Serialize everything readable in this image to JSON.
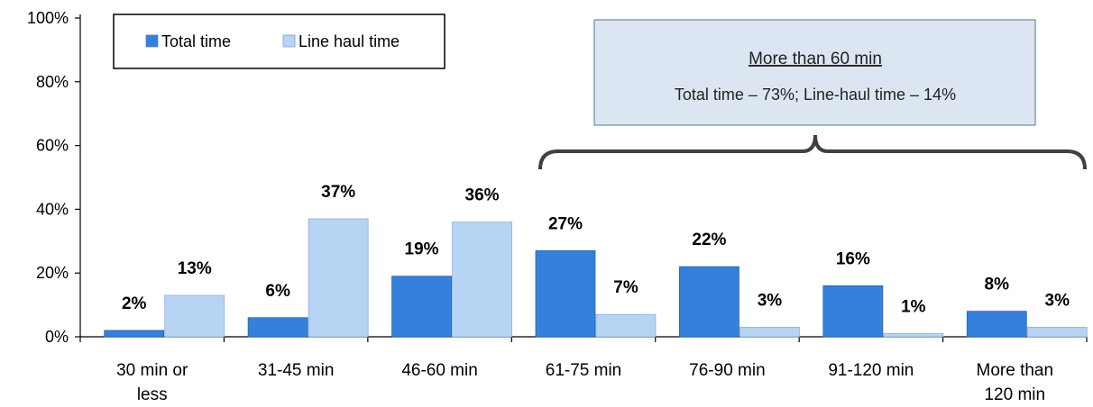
{
  "chart_data": {
    "type": "bar",
    "categories": [
      [
        "30 min or",
        "less"
      ],
      [
        "31-45 min"
      ],
      [
        "46-60 min"
      ],
      [
        "61-75 min"
      ],
      [
        "76-90 min"
      ],
      [
        "91-120 min"
      ],
      [
        "More than",
        "120 min"
      ]
    ],
    "series": [
      {
        "name": "Total time",
        "values": [
          2,
          6,
          19,
          27,
          22,
          16,
          8
        ],
        "color": "#3580DD"
      },
      {
        "name": "Line haul time",
        "values": [
          13,
          37,
          36,
          7,
          3,
          1,
          3
        ],
        "color": "#B8D4F5"
      }
    ],
    "value_labels": {
      "Total time": [
        "2%",
        "6%",
        "19%",
        "27%",
        "22%",
        "16%",
        "8%"
      ],
      "Line haul time": [
        "13%",
        "37%",
        "36%",
        "7%",
        "3%",
        "1%",
        "3%"
      ]
    },
    "yticks": [
      "0%",
      "20%",
      "40%",
      "60%",
      "80%",
      "100%"
    ],
    "ylim": [
      0,
      100
    ],
    "xlabel": "",
    "ylabel": "",
    "grid": false,
    "legend_position": "top-left",
    "annotation": {
      "title": "More than 60 min",
      "text": "Total time – 73%; Line-haul time – 14%",
      "fill": "#DCE6F2",
      "spans_categories": [
        3,
        6
      ]
    }
  }
}
